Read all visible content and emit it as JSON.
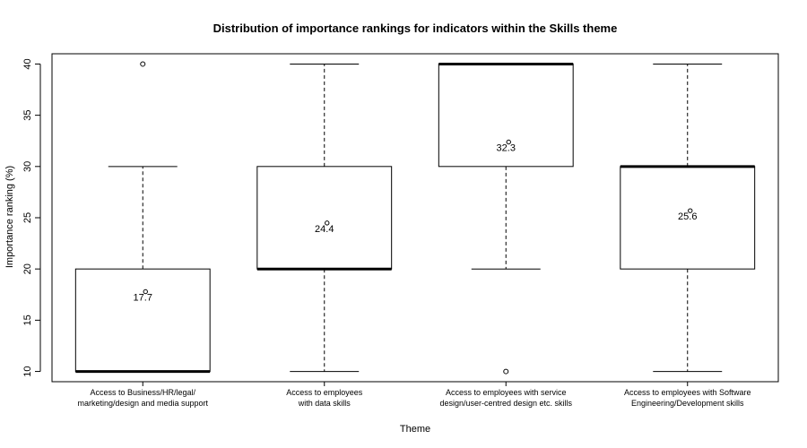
{
  "chart_data": {
    "type": "boxplot",
    "title": "Distribution of importance rankings for indicators within the Skills theme",
    "xlabel": "Theme",
    "ylabel": "Importance ranking (%)",
    "ylim": [
      9,
      41
    ],
    "yticks": [
      10,
      15,
      20,
      25,
      30,
      35,
      40
    ],
    "categories": [
      [
        "Access to Business/HR/legal/",
        "marketing/design and media support"
      ],
      [
        "Access to employees",
        "with data skills"
      ],
      [
        "Access to employees with service",
        "design/user-centred design etc. skills"
      ],
      [
        "Access to employees with Software",
        "Engineering/Development skills"
      ]
    ],
    "boxes": [
      {
        "whisker_low": 10,
        "q1": 10,
        "median": 10,
        "q3": 20,
        "whisker_high": 30,
        "outliers": [
          40
        ],
        "mean": 17.7,
        "mean_label": "17.7"
      },
      {
        "whisker_low": 10,
        "q1": 20,
        "median": 20,
        "q3": 30,
        "whisker_high": 40,
        "outliers": [],
        "mean": 24.4,
        "mean_label": "24.4"
      },
      {
        "whisker_low": 20,
        "q1": 30,
        "median": 40,
        "q3": 40,
        "whisker_high": 40,
        "outliers": [
          10
        ],
        "mean": 32.3,
        "mean_label": "32.3"
      },
      {
        "whisker_low": 10,
        "q1": 20,
        "median": 30,
        "q3": 30,
        "whisker_high": 40,
        "outliers": [],
        "mean": 25.6,
        "mean_label": "25.6"
      }
    ],
    "grid": false,
    "legend": "none"
  }
}
